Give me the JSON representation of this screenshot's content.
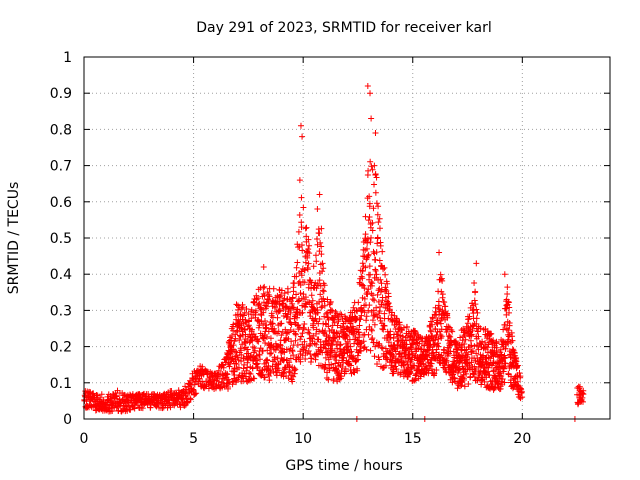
{
  "chart_data": {
    "type": "scatter",
    "title": "Day 291 of 2023, SRMTID for receiver karl",
    "xlabel": "GPS time / hours",
    "ylabel": "SRMTID / TECUs",
    "xlim": [
      0,
      24
    ],
    "ylim": [
      0,
      1
    ],
    "x_ticks": [
      0,
      5,
      10,
      15,
      20
    ],
    "x_tick_labels": [
      "0",
      "5",
      "10",
      "15",
      "20"
    ],
    "y_ticks": [
      0,
      0.1,
      0.2,
      0.3,
      0.4,
      0.5,
      0.6,
      0.7,
      0.8,
      0.9,
      1
    ],
    "y_tick_labels": [
      "0",
      "0.1",
      "0.2",
      "0.3",
      "0.4",
      "0.5",
      "0.6",
      "0.7",
      "0.8",
      "0.9",
      "1"
    ],
    "grid": true,
    "marker": "+",
    "color": "#ff0000",
    "series": [
      {
        "name": "SRMTID",
        "envelope_note": "approximate envelope of the dense point cloud [hour, low, high]",
        "envelope": [
          [
            0.0,
            0.03,
            0.08
          ],
          [
            0.5,
            0.02,
            0.07
          ],
          [
            1.0,
            0.02,
            0.07
          ],
          [
            1.5,
            0.02,
            0.08
          ],
          [
            2.0,
            0.02,
            0.07
          ],
          [
            2.5,
            0.03,
            0.07
          ],
          [
            3.0,
            0.03,
            0.07
          ],
          [
            3.5,
            0.03,
            0.07
          ],
          [
            4.0,
            0.03,
            0.08
          ],
          [
            4.5,
            0.03,
            0.08
          ],
          [
            5.0,
            0.06,
            0.13
          ],
          [
            5.3,
            0.09,
            0.15
          ],
          [
            5.7,
            0.08,
            0.13
          ],
          [
            6.0,
            0.08,
            0.13
          ],
          [
            6.5,
            0.08,
            0.18
          ],
          [
            7.0,
            0.1,
            0.33
          ],
          [
            7.5,
            0.1,
            0.3
          ],
          [
            8.0,
            0.12,
            0.37
          ],
          [
            8.5,
            0.1,
            0.36
          ],
          [
            9.0,
            0.12,
            0.36
          ],
          [
            9.5,
            0.1,
            0.36
          ],
          [
            9.8,
            0.15,
            0.55
          ],
          [
            10.0,
            0.15,
            0.66
          ],
          [
            10.4,
            0.15,
            0.4
          ],
          [
            10.8,
            0.12,
            0.58
          ],
          [
            11.0,
            0.1,
            0.35
          ],
          [
            11.5,
            0.1,
            0.3
          ],
          [
            12.0,
            0.12,
            0.28
          ],
          [
            12.5,
            0.13,
            0.35
          ],
          [
            12.7,
            0.2,
            0.45
          ],
          [
            13.0,
            0.15,
            0.74
          ],
          [
            13.3,
            0.15,
            0.7
          ],
          [
            13.6,
            0.14,
            0.48
          ],
          [
            14.0,
            0.12,
            0.3
          ],
          [
            14.5,
            0.12,
            0.26
          ],
          [
            15.0,
            0.1,
            0.25
          ],
          [
            15.5,
            0.12,
            0.22
          ],
          [
            16.0,
            0.12,
            0.3
          ],
          [
            16.3,
            0.15,
            0.42
          ],
          [
            16.6,
            0.12,
            0.28
          ],
          [
            17.0,
            0.08,
            0.22
          ],
          [
            17.5,
            0.09,
            0.28
          ],
          [
            17.8,
            0.1,
            0.38
          ],
          [
            18.0,
            0.1,
            0.27
          ],
          [
            18.5,
            0.08,
            0.25
          ],
          [
            19.0,
            0.08,
            0.2
          ],
          [
            19.3,
            0.1,
            0.38
          ],
          [
            19.6,
            0.08,
            0.2
          ],
          [
            20.0,
            0.04,
            0.1
          ],
          [
            22.5,
            0.04,
            0.09
          ],
          [
            22.8,
            0.04,
            0.09
          ]
        ],
        "highlights": [
          {
            "x": 9.9,
            "y": 0.81
          },
          {
            "x": 9.95,
            "y": 0.78
          },
          {
            "x": 9.85,
            "y": 0.66
          },
          {
            "x": 10.75,
            "y": 0.62
          },
          {
            "x": 10.65,
            "y": 0.58
          },
          {
            "x": 12.95,
            "y": 0.92
          },
          {
            "x": 13.05,
            "y": 0.9
          },
          {
            "x": 13.1,
            "y": 0.83
          },
          {
            "x": 13.3,
            "y": 0.79
          },
          {
            "x": 13.25,
            "y": 0.7
          },
          {
            "x": 16.2,
            "y": 0.46
          },
          {
            "x": 17.9,
            "y": 0.43
          },
          {
            "x": 19.2,
            "y": 0.4
          },
          {
            "x": 8.2,
            "y": 0.42
          }
        ]
      }
    ]
  }
}
